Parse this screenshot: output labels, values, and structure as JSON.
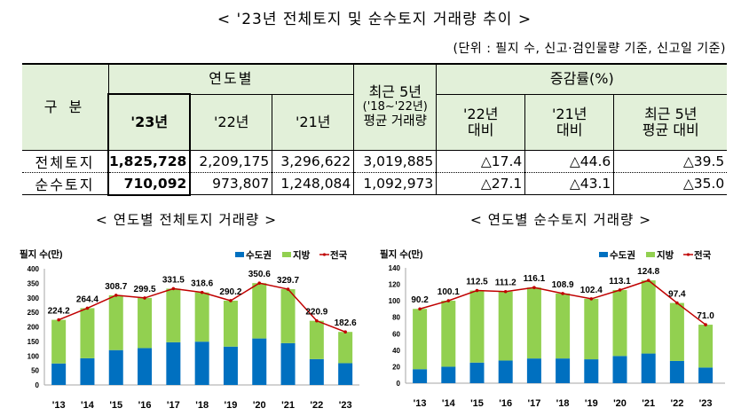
{
  "title": "< '23년 전체토지 및 순수토지 거래량 추이 >",
  "unit_note": "(단위 : 필지 수, 신고·검인물량 기준, 신고일 기준)",
  "table": {
    "corner_label": "구 분",
    "group_yearly": "연도별",
    "group_recent5_line1": "최근 5년",
    "group_recent5_line2": "('18~'22년)",
    "group_recent5_line3": "평균 거래량",
    "group_change": "증감률(%)",
    "year_headers": [
      "'23년",
      "'22년",
      "'21년"
    ],
    "change_headers": [
      {
        "line1": "'22년",
        "line2": "대비"
      },
      {
        "line1": "'21년",
        "line2": "대비"
      },
      {
        "line1": "최근 5년",
        "line2": "평균 대비"
      }
    ],
    "rows": [
      {
        "label": "전체토지",
        "y23": "1,825,728",
        "y22": "2,209,175",
        "y21": "3,296,622",
        "avg5": "3,019,885",
        "vs22": "△17.4",
        "vs21": "△44.6",
        "vs5": "△39.5"
      },
      {
        "label": "순수토지",
        "y23": "710,092",
        "y22": "973,807",
        "y21": "1,248,084",
        "avg5": "1,092,973",
        "vs22": "△27.1",
        "vs21": "△43.1",
        "vs5": "△35.0"
      }
    ]
  },
  "colors": {
    "header_bg": "#e2f0d9",
    "capital": "#0070c0",
    "local": "#92d050",
    "national": "#c00000"
  },
  "chart_data": [
    {
      "type": "bar",
      "stacked": true,
      "title": "< 연도별 전체토지 거래량 >",
      "ylabel": "필지 수(만)",
      "xlabel": "",
      "ylim": [
        0,
        400
      ],
      "yticks": [
        0,
        50,
        100,
        150,
        200,
        250,
        300,
        350,
        400
      ],
      "categories": [
        "'13",
        "'14",
        "'15",
        "'16",
        "'17",
        "'18",
        "'19",
        "'20",
        "'21",
        "'22",
        "'23"
      ],
      "series": [
        {
          "name": "수도권",
          "kind": "bar",
          "values": [
            74,
            92,
            120,
            127,
            147,
            149,
            132,
            160,
            144,
            89,
            75
          ]
        },
        {
          "name": "지방",
          "kind": "bar",
          "values": [
            150.2,
            172.4,
            188.7,
            172.5,
            184.5,
            169.6,
            158.2,
            190.6,
            185.7,
            131.9,
            107.6
          ]
        },
        {
          "name": "전국",
          "kind": "line",
          "values": [
            224.2,
            264.4,
            308.7,
            299.5,
            331.5,
            318.6,
            290.2,
            350.6,
            329.7,
            220.9,
            182.6
          ]
        }
      ],
      "data_labels": [
        "224.2",
        "264.4",
        "308.7",
        "299.5",
        "331.5",
        "318.6",
        "290.2",
        "350.6",
        "329.7",
        "220.9",
        "182.6"
      ],
      "legend": [
        "수도권",
        "지방",
        "전국"
      ],
      "legend_position": "top-right",
      "grid": false
    },
    {
      "type": "bar",
      "stacked": true,
      "title": "< 연도별 순수토지 거래량 >",
      "ylabel": "필지 수(만)",
      "xlabel": "",
      "ylim": [
        0,
        140
      ],
      "yticks": [
        0,
        20,
        40,
        60,
        80,
        100,
        120,
        140
      ],
      "categories": [
        "'13",
        "'14",
        "'15",
        "'16",
        "'17",
        "'18",
        "'19",
        "'20",
        "'21",
        "'22",
        "'23"
      ],
      "series": [
        {
          "name": "수도권",
          "kind": "bar",
          "values": [
            17,
            20,
            25,
            27.5,
            30,
            30,
            29,
            33,
            36,
            27,
            19
          ]
        },
        {
          "name": "지방",
          "kind": "bar",
          "values": [
            73.2,
            80.1,
            87.5,
            83.7,
            86.1,
            78.9,
            73.4,
            80.1,
            88.8,
            70.4,
            52.0
          ]
        },
        {
          "name": "전국",
          "kind": "line",
          "values": [
            90.2,
            100.1,
            112.5,
            111.2,
            116.1,
            108.9,
            102.4,
            113.1,
            124.8,
            97.4,
            71.0
          ]
        }
      ],
      "data_labels": [
        "90.2",
        "100.1",
        "112.5",
        "111.2",
        "116.1",
        "108.9",
        "102.4",
        "113.1",
        "124.8",
        "97.4",
        "71.0"
      ],
      "legend": [
        "수도권",
        "지방",
        "전국"
      ],
      "legend_position": "top-right",
      "grid": false
    }
  ]
}
